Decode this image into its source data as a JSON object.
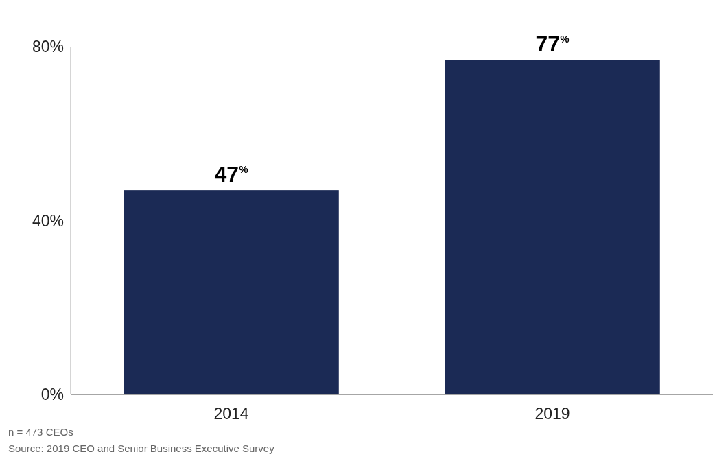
{
  "chart_data": {
    "type": "bar",
    "categories": [
      "2014",
      "2019"
    ],
    "values": [
      47,
      77
    ],
    "color": "#1b2a55",
    "value_labels": [
      "47$^{%}$",
      "77$^{%}$"
    ],
    "ylim": [
      0,
      80
    ],
    "yticks": [
      {
        "value": 0,
        "label": "0%"
      },
      {
        "value": 40,
        "label": "40%"
      },
      {
        "value": 80,
        "label": "80%"
      }
    ],
    "grid": false,
    "annotations": [
      "n = 473 CEOs",
      "Source: 2019 CEO and Senior Business Executive Survey"
    ]
  }
}
